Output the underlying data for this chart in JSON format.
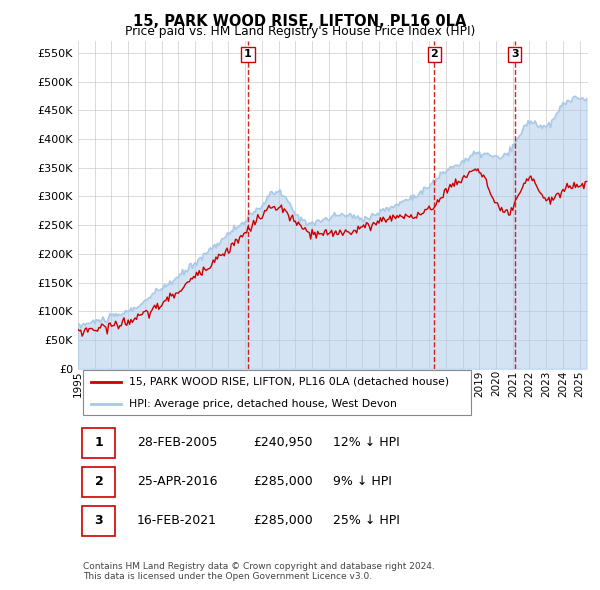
{
  "title": "15, PARK WOOD RISE, LIFTON, PL16 0LA",
  "subtitle": "Price paid vs. HM Land Registry's House Price Index (HPI)",
  "ytick_vals": [
    0,
    50000,
    100000,
    150000,
    200000,
    250000,
    300000,
    350000,
    400000,
    450000,
    500000,
    550000
  ],
  "ylim": [
    0,
    570000
  ],
  "xlim_start": 1995.0,
  "xlim_end": 2025.5,
  "hpi_color": "#a8c8e8",
  "price_color": "#cc0000",
  "sale_line_color": "#cc0000",
  "background_color": "#ffffff",
  "grid_color": "#cccccc",
  "sales": [
    {
      "num": 1,
      "date": "28-FEB-2005",
      "price": "£240,950",
      "hpi_diff": "12% ↓ HPI",
      "x_year": 2005.16
    },
    {
      "num": 2,
      "date": "25-APR-2016",
      "price": "£285,000",
      "hpi_diff": "9% ↓ HPI",
      "x_year": 2016.32
    },
    {
      "num": 3,
      "date": "16-FEB-2021",
      "price": "£285,000",
      "hpi_diff": "25% ↓ HPI",
      "x_year": 2021.12
    }
  ],
  "legend_label_red": "15, PARK WOOD RISE, LIFTON, PL16 0LA (detached house)",
  "legend_label_blue": "HPI: Average price, detached house, West Devon",
  "footnote": "Contains HM Land Registry data © Crown copyright and database right 2024.\nThis data is licensed under the Open Government Licence v3.0.",
  "xtick_years": [
    1995,
    1996,
    1997,
    1998,
    1999,
    2000,
    2001,
    2002,
    2003,
    2004,
    2005,
    2006,
    2007,
    2008,
    2009,
    2010,
    2011,
    2012,
    2013,
    2014,
    2015,
    2016,
    2017,
    2018,
    2019,
    2020,
    2021,
    2022,
    2023,
    2024,
    2025
  ],
  "hpi_years_key": [
    1995,
    1996,
    1997,
    1998,
    1999,
    2000,
    2001,
    2002,
    2003,
    2004,
    2005,
    2006,
    2007,
    2008,
    2009,
    2010,
    2011,
    2012,
    2013,
    2014,
    2015,
    2016,
    2017,
    2018,
    2019,
    2020,
    2021,
    2022,
    2023,
    2024,
    2025,
    2025.5
  ],
  "hpi_vals_key": [
    75000,
    82000,
    90000,
    100000,
    118000,
    140000,
    160000,
    185000,
    210000,
    235000,
    258000,
    285000,
    308000,
    270000,
    255000,
    262000,
    268000,
    262000,
    272000,
    285000,
    300000,
    318000,
    345000,
    360000,
    375000,
    368000,
    385000,
    430000,
    420000,
    460000,
    470000,
    472000
  ],
  "red_years_key": [
    1995,
    1997,
    1999,
    2001,
    2003,
    2005.16,
    2007,
    2008,
    2009,
    2010,
    2012,
    2014,
    2016.32,
    2017,
    2018,
    2019,
    2020,
    2021.12,
    2022,
    2023,
    2024,
    2025,
    2025.5
  ],
  "red_vals_key": [
    65000,
    75000,
    95000,
    135000,
    185000,
    240950,
    280000,
    255000,
    235000,
    235000,
    245000,
    265000,
    285000,
    310000,
    330000,
    345000,
    285000,
    285000,
    330000,
    295000,
    310000,
    320000,
    320000
  ]
}
